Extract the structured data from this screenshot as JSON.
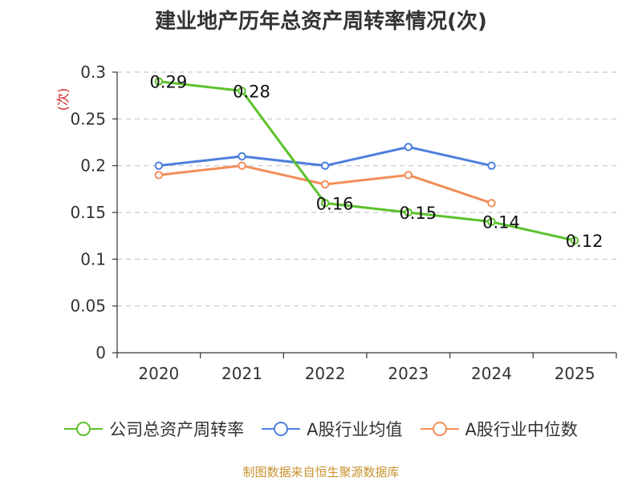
{
  "chart_data": {
    "type": "line",
    "title": "建业地产历年总资产周转率情况(次)",
    "ylabel": "(次)",
    "xlabel": "",
    "categories": [
      "2020",
      "2021",
      "2022",
      "2023",
      "2024",
      "2025"
    ],
    "ylim": [
      0,
      0.3
    ],
    "yticks": [
      "0",
      "0.05",
      "0.1",
      "0.15",
      "0.2",
      "0.25",
      "0.3"
    ],
    "grid": true,
    "legend_position": "bottom",
    "series": [
      {
        "name": "公司总资产周转率",
        "color": "#5cc22c",
        "values": [
          0.29,
          0.28,
          0.16,
          0.15,
          0.14,
          0.12
        ],
        "labels": [
          "0.29",
          "0.28",
          "0.16",
          "0.15",
          "0.14",
          "0.12"
        ]
      },
      {
        "name": "A股行业均值",
        "color": "#4e7fdd",
        "values": [
          0.2,
          0.21,
          0.2,
          0.22,
          0.2,
          null
        ]
      },
      {
        "name": "A股行业中位数",
        "color": "#f28e58",
        "values": [
          0.19,
          0.2,
          0.18,
          0.19,
          0.16,
          null
        ]
      }
    ]
  },
  "source_text": "制图数据来自恒生聚源数据库"
}
